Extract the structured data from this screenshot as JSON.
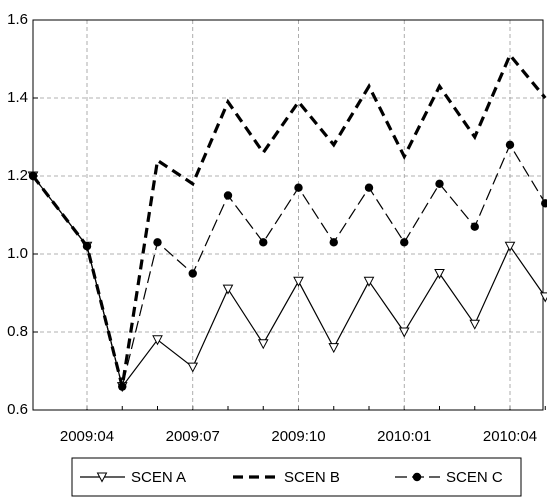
{
  "chart_data": {
    "type": "line",
    "categories": [
      null,
      "2009:04",
      null,
      null,
      "2009:07",
      null,
      null,
      "2009:10",
      null,
      null,
      "2010:01",
      null,
      null,
      "2010:04",
      null
    ],
    "series": [
      {
        "name": "SCEN A",
        "color": "#000000",
        "dash": "none",
        "width": 1.2,
        "marker": "triangle-down",
        "values": [
          1.2,
          1.02,
          0.66,
          0.78,
          0.71,
          0.91,
          0.77,
          0.93,
          0.76,
          0.93,
          0.8,
          0.95,
          0.82,
          1.02,
          0.89
        ]
      },
      {
        "name": "SCEN B",
        "color": "#000000",
        "dash": "10 6",
        "width": 3.2,
        "marker": "none",
        "values": [
          1.2,
          1.02,
          0.66,
          1.24,
          1.18,
          1.39,
          1.26,
          1.39,
          1.28,
          1.43,
          1.25,
          1.43,
          1.3,
          1.51,
          1.4
        ]
      },
      {
        "name": "SCEN C",
        "color": "#000000",
        "dash": "12 5",
        "width": 1.2,
        "marker": "circle",
        "values": [
          1.2,
          1.02,
          0.66,
          1.03,
          0.95,
          1.15,
          1.03,
          1.17,
          1.03,
          1.17,
          1.03,
          1.18,
          1.07,
          1.28,
          1.13
        ]
      }
    ],
    "ylim": [
      0.6,
      1.6
    ],
    "yticks": [
      0.6,
      0.8,
      {
        "value": 1,
        "label": "1.0"
      },
      1.2,
      1.4,
      1.6
    ],
    "grid": true
  }
}
